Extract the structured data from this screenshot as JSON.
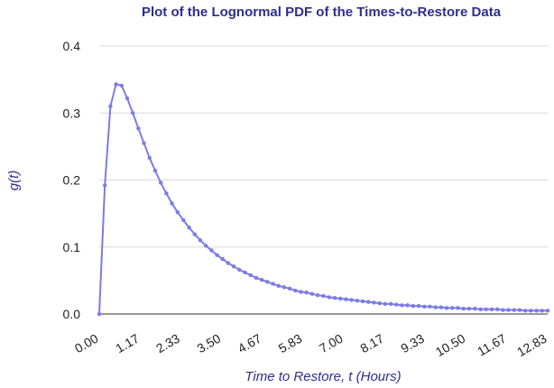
{
  "chart_data": {
    "type": "line",
    "title": "Plot of the Lognormal PDF of the Times-to-Restore Data",
    "xlabel": "Time to Restore, t (Hours)",
    "ylabel": "g(t)",
    "xlim": [
      0,
      12.83
    ],
    "ylim": [
      0,
      0.4
    ],
    "yticks": [
      "0.0",
      "0.1",
      "0.2",
      "0.3",
      "0.4"
    ],
    "yticks_values": [
      0,
      0.1,
      0.2,
      0.3,
      0.4
    ],
    "xticks": [
      "0.00",
      "1.17",
      "2.33",
      "3.50",
      "4.67",
      "5.83",
      "7.00",
      "8.17",
      "9.33",
      "10.50",
      "11.67",
      "12.83"
    ],
    "xticks_values": [
      0,
      1.17,
      2.33,
      3.5,
      4.67,
      5.83,
      7.0,
      8.17,
      9.33,
      10.5,
      11.67,
      12.83
    ],
    "grid": true,
    "legend": "none",
    "series": [
      {
        "color": "#7b7be8",
        "x": [
          0.0,
          0.16,
          0.32,
          0.48,
          0.64,
          0.8,
          0.96,
          1.12,
          1.28,
          1.44,
          1.6,
          1.76,
          1.92,
          2.08,
          2.24,
          2.41,
          2.57,
          2.73,
          2.89,
          3.05,
          3.21,
          3.37,
          3.53,
          3.69,
          3.85,
          4.01,
          4.17,
          4.33,
          4.49,
          4.65,
          4.81,
          4.97,
          5.13,
          5.29,
          5.45,
          5.61,
          5.77,
          5.93,
          6.09,
          6.25,
          6.41,
          6.58,
          6.74,
          6.9,
          7.06,
          7.22,
          7.38,
          7.54,
          7.7,
          7.86,
          8.02,
          8.18,
          8.34,
          8.5,
          8.66,
          8.82,
          8.98,
          9.14,
          9.3,
          9.46,
          9.62,
          9.78,
          9.94,
          10.1,
          10.26,
          10.42,
          10.58,
          10.75,
          10.91,
          11.07,
          11.23,
          11.39,
          11.55,
          11.71,
          11.87,
          12.03,
          12.19,
          12.35,
          12.51,
          12.67,
          12.83
        ],
        "y": [
          0.0,
          0.192,
          0.31,
          0.343,
          0.341,
          0.322,
          0.3,
          0.277,
          0.255,
          0.233,
          0.214,
          0.196,
          0.18,
          0.165,
          0.152,
          0.14,
          0.129,
          0.119,
          0.11,
          0.102,
          0.095,
          0.088,
          0.082,
          0.076,
          0.071,
          0.066,
          0.062,
          0.058,
          0.054,
          0.051,
          0.048,
          0.045,
          0.042,
          0.04,
          0.038,
          0.035,
          0.033,
          0.032,
          0.03,
          0.028,
          0.027,
          0.025,
          0.024,
          0.023,
          0.022,
          0.021,
          0.02,
          0.019,
          0.018,
          0.017,
          0.016,
          0.015,
          0.015,
          0.014,
          0.013,
          0.013,
          0.012,
          0.012,
          0.011,
          0.011,
          0.01,
          0.01,
          0.009,
          0.009,
          0.009,
          0.008,
          0.008,
          0.008,
          0.007,
          0.007,
          0.007,
          0.007,
          0.006,
          0.006,
          0.006,
          0.006,
          0.005,
          0.005,
          0.005,
          0.005,
          0.005
        ]
      }
    ]
  }
}
